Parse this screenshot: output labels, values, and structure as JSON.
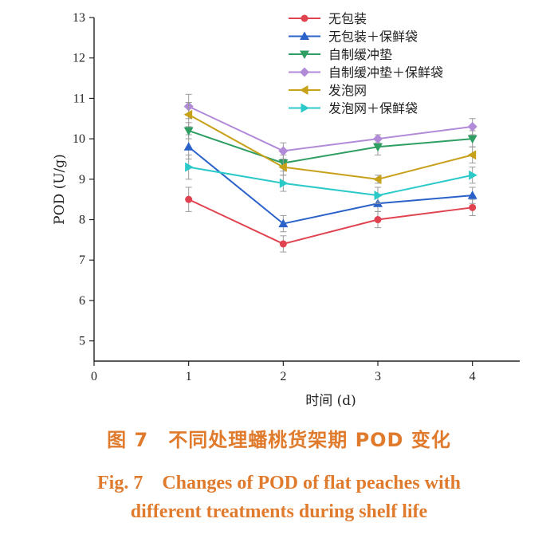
{
  "chart_data": {
    "type": "line",
    "xlabel": "时间 (d)",
    "ylabel": "POD (U/g)",
    "xlim": [
      0,
      4.5
    ],
    "ylim": [
      4.5,
      13
    ],
    "xticks": [
      0,
      1,
      2,
      3,
      4
    ],
    "yticks": [
      5,
      6,
      7,
      8,
      9,
      10,
      11,
      12,
      13
    ],
    "x": [
      1,
      2,
      3,
      4
    ],
    "legend_position": "top-right",
    "series": [
      {
        "name": "无包装",
        "values": [
          8.5,
          7.4,
          8.0,
          8.3
        ],
        "errors": [
          0.3,
          0.2,
          0.2,
          0.2
        ],
        "color": "#e0434f",
        "marker": "circle"
      },
      {
        "name": "无包装＋保鲜袋",
        "values": [
          9.8,
          7.9,
          8.4,
          8.6
        ],
        "errors": [
          0.3,
          0.2,
          0.2,
          0.2
        ],
        "color": "#2a62c9",
        "marker": "triangle-up"
      },
      {
        "name": "自制缓冲垫",
        "values": [
          10.2,
          9.4,
          9.8,
          10.0
        ],
        "errors": [
          0.2,
          0.2,
          0.2,
          0.2
        ],
        "color": "#2f9e63",
        "marker": "triangle-down"
      },
      {
        "name": "自制缓冲垫＋保鲜袋",
        "values": [
          10.8,
          9.7,
          10.0,
          10.3
        ],
        "errors": [
          0.3,
          0.2,
          0.1,
          0.2
        ],
        "color": "#b18ad8",
        "marker": "diamond"
      },
      {
        "name": "发泡网",
        "values": [
          10.6,
          9.3,
          9.0,
          9.6
        ],
        "errors": [
          0.3,
          0.2,
          0.1,
          0.2
        ],
        "color": "#c7a11a",
        "marker": "triangle-left"
      },
      {
        "name": "发泡网＋保鲜袋",
        "values": [
          9.3,
          8.9,
          8.6,
          9.1
        ],
        "errors": [
          0.3,
          0.2,
          0.2,
          0.2
        ],
        "color": "#2cc9c9",
        "marker": "triangle-right"
      }
    ]
  },
  "caption": {
    "cn": "图 7　不同处理蟠桃货架期 POD 变化",
    "en_line1": "Fig. 7　Changes of POD of flat peaches with",
    "en_line2": "different treatments during shelf life"
  }
}
